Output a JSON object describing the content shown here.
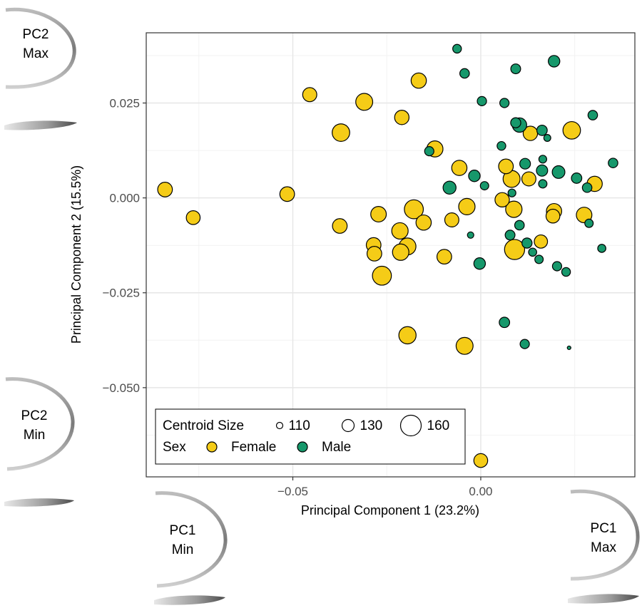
{
  "chart_data": {
    "type": "scatter",
    "xlabel": "Principal Component 1 (23.2%)",
    "ylabel": "Principal Component 2 (15.5%)",
    "xlim": [
      -0.089,
      0.041
    ],
    "ylim": [
      -0.0735,
      0.0435
    ],
    "x_ticks": [
      -0.05,
      0.0
    ],
    "x_tick_labels": [
      "−0.05",
      "0.00"
    ],
    "y_ticks": [
      0.025,
      0.0,
      -0.025,
      -0.05
    ],
    "y_tick_labels": [
      "0.025",
      "0.000",
      "−0.025",
      "−0.050"
    ],
    "grid": true,
    "legend_position": "bottom-left",
    "legend": {
      "size_title": "Centroid Size",
      "size_entries": [
        {
          "label": "110",
          "value": 110
        },
        {
          "label": "130",
          "value": 130
        },
        {
          "label": "160",
          "value": 160
        }
      ],
      "color_title": "Sex",
      "color_entries": [
        {
          "label": "Female",
          "color": "#F5CC17"
        },
        {
          "label": "Male",
          "color": "#16986B"
        }
      ]
    },
    "series": [
      {
        "name": "Female",
        "color": "#F5CC17",
        "points": [
          {
            "x": -0.084,
            "y": 0.0022,
            "size": 139
          },
          {
            "x": -0.0765,
            "y": -0.0052,
            "size": 136
          },
          {
            "x": -0.0515,
            "y": 0.001,
            "size": 139
          },
          {
            "x": -0.0455,
            "y": 0.0272,
            "size": 137
          },
          {
            "x": -0.0375,
            "y": -0.0074,
            "size": 139
          },
          {
            "x": -0.0372,
            "y": 0.0172,
            "size": 149
          },
          {
            "x": -0.031,
            "y": 0.0253,
            "size": 147
          },
          {
            "x": -0.0285,
            "y": -0.0124,
            "size": 139
          },
          {
            "x": -0.0283,
            "y": -0.0147,
            "size": 139
          },
          {
            "x": -0.0272,
            "y": -0.0043,
            "size": 142
          },
          {
            "x": -0.0263,
            "y": -0.0205,
            "size": 154
          },
          {
            "x": -0.0215,
            "y": -0.0087,
            "size": 145
          },
          {
            "x": -0.0213,
            "y": -0.0143,
            "size": 145
          },
          {
            "x": -0.021,
            "y": 0.0212,
            "size": 138
          },
          {
            "x": -0.0195,
            "y": -0.0128,
            "size": 147
          },
          {
            "x": -0.0195,
            "y": -0.0362,
            "size": 148
          },
          {
            "x": -0.0178,
            "y": -0.003,
            "size": 154
          },
          {
            "x": -0.0165,
            "y": 0.0309,
            "size": 141
          },
          {
            "x": -0.0152,
            "y": -0.0065,
            "size": 141
          },
          {
            "x": -0.0122,
            "y": 0.0129,
            "size": 144
          },
          {
            "x": -0.0097,
            "y": -0.0155,
            "size": 139
          },
          {
            "x": -0.0077,
            "y": -0.0058,
            "size": 137
          },
          {
            "x": -0.0057,
            "y": 0.0079,
            "size": 141
          },
          {
            "x": -0.0043,
            "y": -0.039,
            "size": 147
          },
          {
            "x": -0.0037,
            "y": -0.0023,
            "size": 145
          },
          {
            "x": 0.0,
            "y": -0.0692,
            "size": 136
          },
          {
            "x": 0.0057,
            "y": -0.0005,
            "size": 138
          },
          {
            "x": 0.0067,
            "y": 0.0083,
            "size": 139
          },
          {
            "x": 0.0082,
            "y": 0.005,
            "size": 147
          },
          {
            "x": 0.0088,
            "y": -0.003,
            "size": 145
          },
          {
            "x": 0.009,
            "y": -0.0136,
            "size": 158
          },
          {
            "x": 0.0128,
            "y": 0.005,
            "size": 137
          },
          {
            "x": 0.0132,
            "y": 0.017,
            "size": 138
          },
          {
            "x": 0.016,
            "y": -0.0115,
            "size": 134
          },
          {
            "x": 0.0192,
            "y": -0.0048,
            "size": 136
          },
          {
            "x": 0.0195,
            "y": -0.0035,
            "size": 141
          },
          {
            "x": 0.0242,
            "y": 0.0178,
            "size": 149
          },
          {
            "x": 0.0275,
            "y": -0.0045,
            "size": 142
          },
          {
            "x": 0.0303,
            "y": 0.0037,
            "size": 141
          }
        ]
      },
      {
        "name": "Male",
        "color": "#16986B",
        "points": [
          {
            "x": -0.0063,
            "y": 0.0393,
            "size": 118
          },
          {
            "x": -0.0043,
            "y": 0.0328,
            "size": 121
          },
          {
            "x": 0.0003,
            "y": 0.0255,
            "size": 120
          },
          {
            "x": 0.0063,
            "y": 0.025,
            "size": 120
          },
          {
            "x": 0.0093,
            "y": 0.034,
            "size": 122
          },
          {
            "x": 0.0195,
            "y": 0.036,
            "size": 128
          },
          {
            "x": 0.0093,
            "y": 0.0198,
            "size": 123
          },
          {
            "x": 0.0103,
            "y": 0.0192,
            "size": 138
          },
          {
            "x": 0.0055,
            "y": 0.0137,
            "size": 118
          },
          {
            "x": -0.0137,
            "y": 0.0123,
            "size": 120
          },
          {
            "x": 0.0163,
            "y": 0.0178,
            "size": 124
          },
          {
            "x": 0.0177,
            "y": 0.0158,
            "size": 112
          },
          {
            "x": 0.0165,
            "y": 0.0102,
            "size": 115
          },
          {
            "x": 0.0118,
            "y": 0.009,
            "size": 125
          },
          {
            "x": -0.0017,
            "y": 0.0058,
            "size": 128
          },
          {
            "x": 0.0163,
            "y": 0.0072,
            "size": 127
          },
          {
            "x": 0.0207,
            "y": 0.0068,
            "size": 132
          },
          {
            "x": 0.0255,
            "y": 0.0052,
            "size": 124
          },
          {
            "x": 0.0283,
            "y": 0.0027,
            "size": 121
          },
          {
            "x": 0.0352,
            "y": 0.0092,
            "size": 121
          },
          {
            "x": 0.0298,
            "y": 0.0218,
            "size": 121
          },
          {
            "x": 0.001,
            "y": 0.0032,
            "size": 117
          },
          {
            "x": -0.0083,
            "y": 0.0027,
            "size": 133
          },
          {
            "x": 0.0083,
            "y": 0.0013,
            "size": 115
          },
          {
            "x": 0.0165,
            "y": 0.0037,
            "size": 117
          },
          {
            "x": 0.0103,
            "y": -0.0072,
            "size": 121
          },
          {
            "x": 0.0078,
            "y": -0.0098,
            "size": 122
          },
          {
            "x": -0.0027,
            "y": -0.0098,
            "size": 110
          },
          {
            "x": 0.0123,
            "y": -0.0119,
            "size": 123
          },
          {
            "x": 0.0138,
            "y": -0.0143,
            "size": 116
          },
          {
            "x": 0.0155,
            "y": -0.0162,
            "size": 117
          },
          {
            "x": -0.0003,
            "y": -0.0173,
            "size": 128
          },
          {
            "x": 0.0203,
            "y": -0.018,
            "size": 120
          },
          {
            "x": 0.0227,
            "y": -0.0195,
            "size": 118
          },
          {
            "x": 0.0288,
            "y": -0.0067,
            "size": 117
          },
          {
            "x": 0.0322,
            "y": -0.0133,
            "size": 116
          },
          {
            "x": 0.0063,
            "y": -0.0328,
            "size": 124
          },
          {
            "x": 0.0117,
            "y": -0.0385,
            "size": 120
          },
          {
            "x": 0.0235,
            "y": -0.0395,
            "size": 90
          }
        ]
      }
    ],
    "shape_labels": [
      {
        "id": "pc2-max",
        "lines": [
          "PC2",
          "Max"
        ]
      },
      {
        "id": "pc2-min",
        "lines": [
          "PC2",
          "Min"
        ]
      },
      {
        "id": "pc1-min",
        "lines": [
          "PC1",
          "Min"
        ]
      },
      {
        "id": "pc1-max",
        "lines": [
          "PC1",
          "Max"
        ]
      }
    ]
  }
}
